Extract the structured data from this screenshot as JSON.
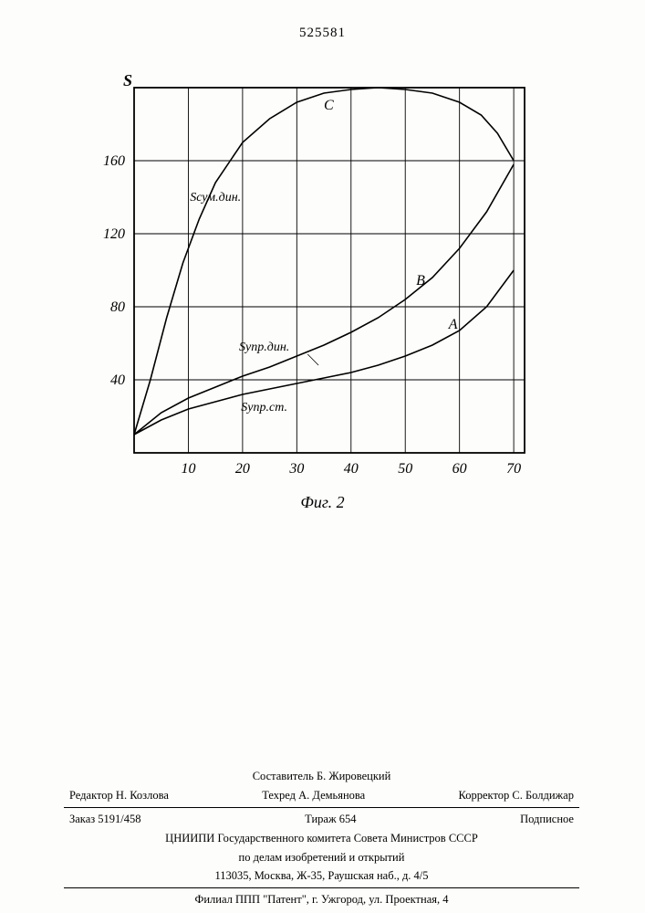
{
  "doc_number": "525581",
  "chart": {
    "type": "line",
    "x_axis_ticks": [
      0,
      10,
      20,
      30,
      40,
      50,
      60,
      70
    ],
    "y_axis_ticks": [
      0,
      40,
      80,
      120,
      160,
      200
    ],
    "y_label_ticks": [
      40,
      80,
      120,
      160
    ],
    "y_title": "S",
    "xlim": [
      0,
      72
    ],
    "ylim": [
      0,
      200
    ],
    "grid_color": "#000000",
    "background": "#ffffff",
    "line_color": "#000000",
    "line_width": 1.6,
    "axis_fontsize": 16,
    "label_fontsize": 14,
    "curves": {
      "A": {
        "label": "A",
        "label_pos": {
          "x": 58,
          "y": 68
        },
        "annotation": "Sупр.ст.",
        "annotation_pos": {
          "x": 24,
          "y": 23
        },
        "points": [
          [
            0,
            10
          ],
          [
            5,
            18
          ],
          [
            10,
            24
          ],
          [
            15,
            28
          ],
          [
            20,
            32
          ],
          [
            25,
            35
          ],
          [
            30,
            38
          ],
          [
            35,
            41
          ],
          [
            40,
            44
          ],
          [
            45,
            48
          ],
          [
            50,
            53
          ],
          [
            55,
            59
          ],
          [
            60,
            67
          ],
          [
            65,
            80
          ],
          [
            70,
            100
          ]
        ]
      },
      "B": {
        "label": "B",
        "label_pos": {
          "x": 52,
          "y": 92
        },
        "annotation": "Sупр.дин.",
        "annotation_pos": {
          "x": 24,
          "y": 56
        },
        "points": [
          [
            0,
            10
          ],
          [
            5,
            22
          ],
          [
            10,
            30
          ],
          [
            15,
            36
          ],
          [
            20,
            42
          ],
          [
            25,
            47
          ],
          [
            30,
            53
          ],
          [
            35,
            59
          ],
          [
            40,
            66
          ],
          [
            45,
            74
          ],
          [
            50,
            84
          ],
          [
            55,
            96
          ],
          [
            60,
            112
          ],
          [
            65,
            132
          ],
          [
            70,
            158
          ]
        ]
      },
      "C": {
        "label": "C",
        "label_pos": {
          "x": 35,
          "y": 188
        },
        "annotation": "Sсум.дин.",
        "annotation_pos": {
          "x": 15,
          "y": 138
        },
        "points": [
          [
            0,
            10
          ],
          [
            3,
            40
          ],
          [
            6,
            74
          ],
          [
            9,
            104
          ],
          [
            12,
            128
          ],
          [
            15,
            148
          ],
          [
            20,
            170
          ],
          [
            25,
            183
          ],
          [
            30,
            192
          ],
          [
            35,
            197
          ],
          [
            40,
            199
          ],
          [
            45,
            200
          ],
          [
            50,
            199
          ],
          [
            55,
            197
          ],
          [
            60,
            192
          ],
          [
            64,
            185
          ],
          [
            67,
            175
          ],
          [
            70,
            160
          ]
        ]
      }
    }
  },
  "caption": "Фиг. 2",
  "footer": {
    "compiler": "Составитель Б. Жировецкий",
    "editor_label": "Редактор",
    "editor": "Н. Козлова",
    "tech_label": "Техред",
    "tech": "А. Демьянова",
    "corrector_label": "Корректор",
    "corrector": "С. Болдижар",
    "order": "Заказ 5191/458",
    "tirage": "Тираж 654",
    "subscr": "Подписное",
    "org1": "ЦНИИПИ Государственного комитета Совета Министров СССР",
    "org2": "по делам изобретений и открытий",
    "address": "113035, Москва, Ж-35, Раушская наб., д. 4/5",
    "branch": "Филиал ППП \"Патент\", г. Ужгород, ул. Проектная, 4"
  }
}
